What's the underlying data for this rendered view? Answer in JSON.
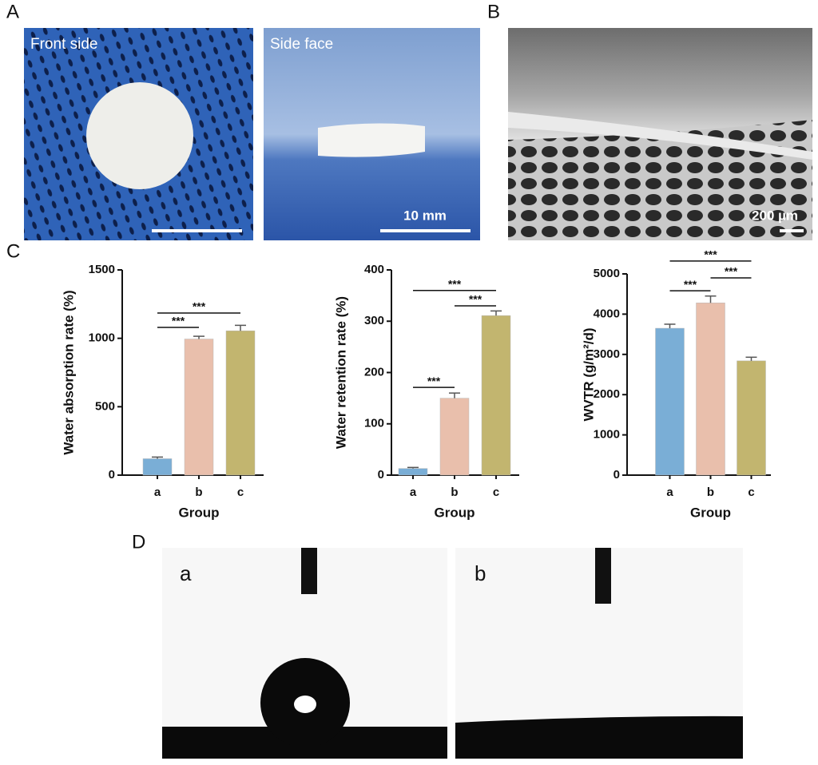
{
  "figure": {
    "panel_labels": [
      "A",
      "B",
      "C",
      "D"
    ],
    "photos": {
      "front": "Front side",
      "side": "Side face",
      "scale_a": "10 mm",
      "scale_b": "200 µm",
      "contact_a": "a",
      "contact_b": "b"
    }
  },
  "chart_data": [
    {
      "type": "bar",
      "xlabel": "Group",
      "ylabel": "Water absorption rate (%)",
      "categories": [
        "a",
        "b",
        "c"
      ],
      "values": [
        120,
        995,
        1055
      ],
      "errors": [
        12,
        20,
        40
      ],
      "colors": [
        "#7aaed6",
        "#e9bfac",
        "#c2b56f"
      ],
      "ylim": [
        0,
        1500
      ],
      "yticks": [
        0,
        500,
        1000,
        1500
      ],
      "significance": [
        {
          "from": "a",
          "to": "b",
          "y": 1080,
          "label": "***"
        },
        {
          "from": "a",
          "to": "c",
          "y": 1185,
          "label": "***"
        }
      ]
    },
    {
      "type": "bar",
      "xlabel": "Group",
      "ylabel": "Water retention rate (%)",
      "categories": [
        "a",
        "b",
        "c"
      ],
      "values": [
        13,
        150,
        311
      ],
      "errors": [
        2,
        10,
        9
      ],
      "colors": [
        "#7aaed6",
        "#e9bfac",
        "#c2b56f"
      ],
      "ylim": [
        0,
        400
      ],
      "yticks": [
        0,
        100,
        200,
        300,
        400
      ],
      "significance": [
        {
          "from": "a",
          "to": "b",
          "y": 171,
          "label": "***"
        },
        {
          "from": "b",
          "to": "c",
          "y": 330,
          "label": "***"
        },
        {
          "from": "a",
          "to": "c",
          "y": 360,
          "label": "***"
        }
      ]
    },
    {
      "type": "bar",
      "xlabel": "Group",
      "ylabel": "WVTR (g/m²/d)",
      "categories": [
        "a",
        "b",
        "c"
      ],
      "values": [
        3650,
        4280,
        2840
      ],
      "errors": [
        100,
        170,
        90
      ],
      "colors": [
        "#7aaed6",
        "#e9bfac",
        "#c2b56f"
      ],
      "ylim": [
        0,
        5000
      ],
      "yticks": [
        0,
        1000,
        2000,
        3000,
        4000,
        5000
      ],
      "significance": [
        {
          "from": "a",
          "to": "b",
          "y": 4580,
          "label": "***"
        },
        {
          "from": "b",
          "to": "c",
          "y": 4900,
          "label": "***"
        },
        {
          "from": "a",
          "to": "c",
          "y": 5320,
          "label": "***"
        }
      ]
    }
  ]
}
